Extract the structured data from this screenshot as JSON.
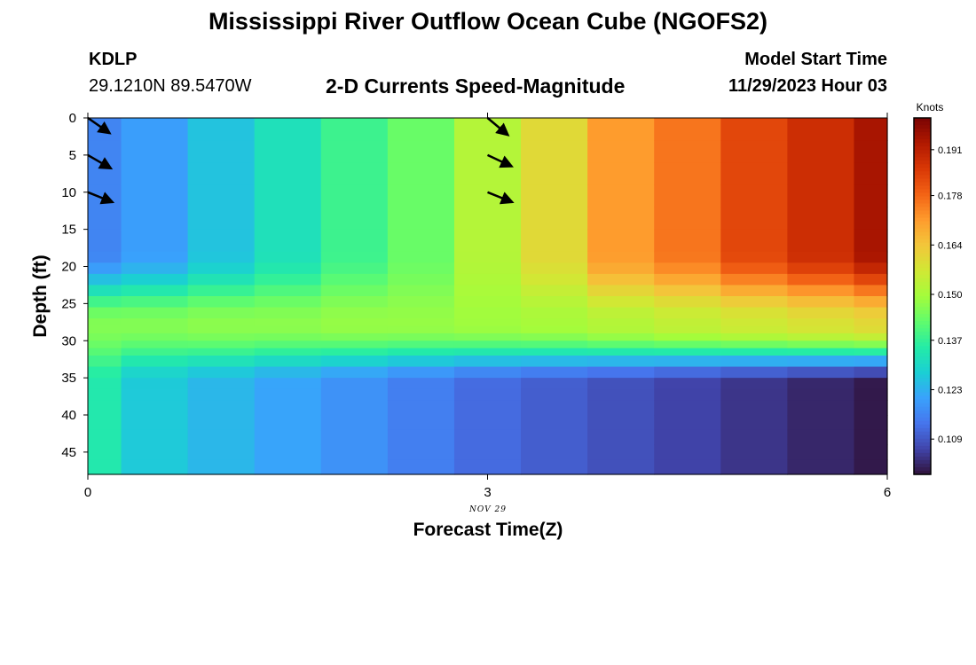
{
  "header": {
    "title": "Mississippi River Outflow Ocean Cube (NGOFS2)",
    "station_name": "KDLP",
    "station_coords": "29.1210N  89.5470W",
    "plot_title": "2-D Currents Speed-Magnitude",
    "model_start_label": "Model Start Time",
    "model_start_value": "11/29/2023 Hour 03"
  },
  "footer": {
    "title": "Mississippi River Outflow Ocean Cube (NGOFS2)"
  },
  "chart_data": {
    "type": "heatmap",
    "title": "2-D Currents Speed-Magnitude",
    "xlabel": "Forecast Time(Z)",
    "ylabel": "Depth (ft)",
    "x_date_label": "NOV 29",
    "xlim": [
      0,
      6
    ],
    "ylim": [
      48,
      0
    ],
    "x_ticks": [
      0,
      3,
      6
    ],
    "y_ticks": [
      0,
      5,
      10,
      15,
      20,
      25,
      30,
      35,
      40,
      45
    ],
    "colorbar": {
      "label": "Knots",
      "ticks": [
        0.109,
        0.123,
        0.137,
        0.15,
        0.164,
        0.178,
        0.191
      ],
      "range": [
        0.099,
        0.2
      ],
      "colors": [
        "#30123b",
        "#4145ab",
        "#4675ed",
        "#39a2fc",
        "#1bcfd4",
        "#24eca6",
        "#61fc6c",
        "#a4fc3b",
        "#d1e834",
        "#f3c63a",
        "#fe9b2d",
        "#f36315",
        "#d93806",
        "#b11901",
        "#7a0403"
      ]
    },
    "time_steps": [
      0,
      0.5,
      1,
      1.5,
      2,
      2.5,
      3,
      3.5,
      4,
      4.5,
      5,
      5.5,
      6
    ],
    "layer_depths": [
      0,
      3,
      6,
      9,
      12,
      15,
      18,
      19.5,
      21,
      22.5,
      24,
      25.5,
      27,
      28,
      29,
      30,
      31,
      32,
      33.5,
      35,
      36.5,
      38,
      40,
      42,
      44,
      46,
      48
    ],
    "speed_surface": [
      0.116,
      0.12,
      0.126,
      0.132,
      0.138,
      0.143,
      0.152,
      0.16,
      0.171,
      0.176,
      0.183,
      0.188,
      0.194
    ],
    "speed_mid": [
      0.146,
      0.146,
      0.147,
      0.147,
      0.148,
      0.148,
      0.149,
      0.15,
      0.152,
      0.154,
      0.156,
      0.158,
      0.16
    ],
    "speed_bottom": [
      0.134,
      0.127,
      0.124,
      0.121,
      0.118,
      0.115,
      0.112,
      0.11,
      0.108,
      0.106,
      0.104,
      0.102,
      0.1
    ],
    "vectors": [
      {
        "time": 0,
        "depth": 0,
        "speed": 0.116,
        "direction_deg": 35
      },
      {
        "time": 0,
        "depth": 5,
        "speed": 0.116,
        "direction_deg": 30
      },
      {
        "time": 0,
        "depth": 10,
        "speed": 0.116,
        "direction_deg": 22
      },
      {
        "time": 3,
        "depth": 0,
        "speed": 0.152,
        "direction_deg": 40
      },
      {
        "time": 3,
        "depth": 5,
        "speed": 0.152,
        "direction_deg": 25
      },
      {
        "time": 3,
        "depth": 10,
        "speed": 0.152,
        "direction_deg": 22
      }
    ]
  }
}
